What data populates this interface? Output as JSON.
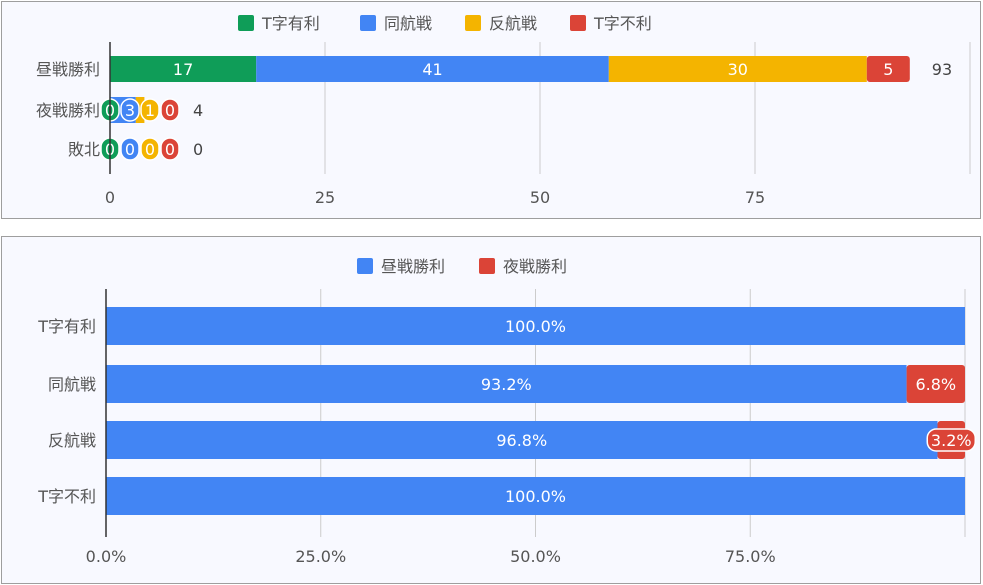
{
  "chart_data": [
    {
      "type": "bar",
      "orientation": "horizontal",
      "stacked": true,
      "categories": [
        "昼戦勝利",
        "夜戦勝利",
        "敗北"
      ],
      "series": [
        {
          "name": "T字有利",
          "color": "#0f9d58",
          "values": [
            17,
            0,
            0
          ]
        },
        {
          "name": "同航戦",
          "color": "#4285f4",
          "values": [
            41,
            3,
            0
          ]
        },
        {
          "name": "反航戦",
          "color": "#f4b400",
          "values": [
            30,
            1,
            0
          ]
        },
        {
          "name": "T字不利",
          "color": "#db4437",
          "values": [
            5,
            0,
            0
          ]
        }
      ],
      "totals": [
        93,
        4,
        0
      ],
      "xticks": [
        "0",
        "25",
        "50",
        "75"
      ],
      "xlim": [
        0,
        100
      ],
      "grid": true,
      "legend": "top"
    },
    {
      "type": "bar",
      "orientation": "horizontal",
      "stacked": true,
      "percent": true,
      "categories": [
        "T字有利",
        "同航戦",
        "反航戦",
        "T字不利"
      ],
      "series": [
        {
          "name": "昼戦勝利",
          "color": "#4285f4",
          "values": [
            100.0,
            93.2,
            96.8,
            100.0
          ]
        },
        {
          "name": "夜戦勝利",
          "color": "#db4437",
          "values": [
            0,
            6.8,
            3.2,
            0
          ]
        }
      ],
      "xticks": [
        "0.0%",
        "25.0%",
        "50.0%",
        "75.0%"
      ],
      "xlim": [
        0,
        100
      ],
      "grid": true,
      "legend": "top"
    }
  ]
}
